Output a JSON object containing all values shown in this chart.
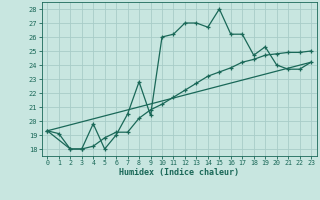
{
  "xlabel": "Humidex (Indice chaleur)",
  "bg_color": "#c8e6e0",
  "grid_color": "#a8ccc8",
  "line_color": "#1a6858",
  "xlim": [
    -0.5,
    23.5
  ],
  "ylim": [
    17.5,
    28.5
  ],
  "yticks": [
    18,
    19,
    20,
    21,
    22,
    23,
    24,
    25,
    26,
    27,
    28
  ],
  "xticks": [
    0,
    1,
    2,
    3,
    4,
    5,
    6,
    7,
    8,
    9,
    10,
    11,
    12,
    13,
    14,
    15,
    16,
    17,
    18,
    19,
    20,
    21,
    22,
    23
  ],
  "line1_x": [
    0,
    1,
    2,
    3,
    4,
    5,
    6,
    7,
    8,
    9,
    10,
    11,
    12,
    13,
    14,
    15,
    16,
    17,
    18,
    19,
    20,
    21,
    22,
    23
  ],
  "line1_y": [
    19.3,
    19.1,
    18.0,
    18.0,
    19.8,
    18.0,
    19.0,
    20.5,
    22.8,
    20.4,
    26.0,
    26.2,
    27.0,
    27.0,
    26.7,
    28.0,
    26.2,
    26.2,
    24.7,
    25.3,
    24.0,
    23.7,
    23.7,
    24.2
  ],
  "line2_x": [
    0,
    2,
    3,
    4,
    5,
    6,
    7,
    8,
    9,
    10,
    11,
    12,
    13,
    14,
    15,
    16,
    17,
    18,
    19,
    20,
    21,
    22,
    23
  ],
  "line2_y": [
    19.3,
    18.0,
    18.0,
    18.2,
    18.8,
    19.2,
    19.2,
    20.2,
    20.8,
    21.2,
    21.7,
    22.2,
    22.7,
    23.2,
    23.5,
    23.8,
    24.2,
    24.4,
    24.7,
    24.8,
    24.9,
    24.9,
    25.0
  ],
  "line3_x": [
    0,
    23
  ],
  "line3_y": [
    19.3,
    24.2
  ]
}
